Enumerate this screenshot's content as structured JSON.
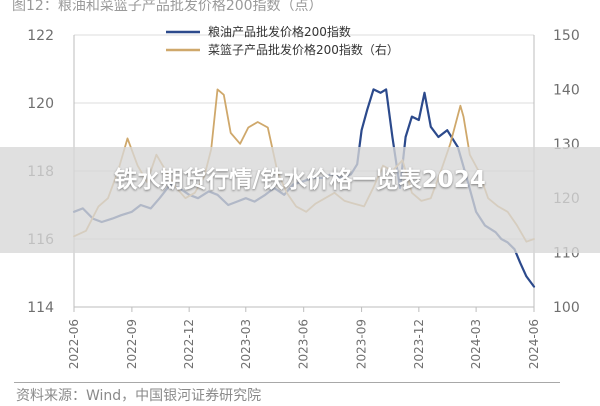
{
  "figure_title": "图12：粮油和菜篮子产品批发价格200指数（点）",
  "source_text": "资料来源：Wind，中国银河证券研究院",
  "banner": {
    "text": "铁水期货行情/铁水价格一览表2024"
  },
  "colors": {
    "series1": "#2c4a8c",
    "series2": "#cfa86b",
    "grid": "#dcdcdc",
    "axis": "#bdbdbd",
    "text": "#6f6f6f"
  },
  "chart_data": {
    "type": "line",
    "title": "",
    "xlabel": "",
    "ylabel": "",
    "ylim_left": [
      114,
      122
    ],
    "ylim_right": [
      100,
      150
    ],
    "left_ticks": [
      114,
      116,
      118,
      120,
      122
    ],
    "right_ticks": [
      100,
      110,
      120,
      130,
      140,
      150
    ],
    "x_range": [
      "2022-06",
      "2024-06"
    ],
    "x_ticks": [
      "2022-06",
      "2022-09",
      "2022-12",
      "2023-03",
      "2023-06",
      "2023-09",
      "2023-12",
      "2024-03",
      "2024-06"
    ],
    "legend_position": "top-center",
    "series": [
      {
        "name": "粮油产品批发价格200指数",
        "axis": "left",
        "x": [
          "2022-06-01",
          "2022-06-15",
          "2022-07-01",
          "2022-07-15",
          "2022-08-01",
          "2022-08-15",
          "2022-09-01",
          "2022-09-15",
          "2022-10-01",
          "2022-10-15",
          "2022-11-01",
          "2022-11-15",
          "2022-12-01",
          "2022-12-15",
          "2023-01-01",
          "2023-01-15",
          "2023-02-01",
          "2023-02-15",
          "2023-03-01",
          "2023-03-15",
          "2023-04-01",
          "2023-04-15",
          "2023-05-01",
          "2023-05-15",
          "2023-06-01",
          "2023-06-15",
          "2023-07-01",
          "2023-07-15",
          "2023-08-01",
          "2023-08-15",
          "2023-08-25",
          "2023-09-01",
          "2023-09-10",
          "2023-09-20",
          "2023-10-01",
          "2023-10-10",
          "2023-10-20",
          "2023-11-01",
          "2023-11-10",
          "2023-11-20",
          "2023-12-01",
          "2023-12-10",
          "2023-12-20",
          "2024-01-01",
          "2024-01-15",
          "2024-02-01",
          "2024-02-15",
          "2024-03-01",
          "2024-03-15",
          "2024-04-01",
          "2024-04-10",
          "2024-04-20",
          "2024-05-01",
          "2024-05-10",
          "2024-05-20",
          "2024-06-01"
        ],
        "values": [
          116.8,
          116.9,
          116.6,
          116.5,
          116.6,
          116.7,
          116.8,
          117.0,
          116.9,
          117.2,
          117.6,
          117.5,
          117.3,
          117.2,
          117.4,
          117.3,
          117.0,
          117.1,
          117.2,
          117.1,
          117.3,
          117.5,
          117.3,
          117.6,
          117.7,
          117.8,
          117.8,
          117.9,
          117.8,
          117.9,
          118.2,
          119.2,
          119.8,
          120.4,
          120.3,
          120.4,
          119.0,
          117.5,
          119.0,
          119.6,
          119.5,
          120.3,
          119.3,
          119.0,
          119.2,
          118.7,
          117.8,
          116.8,
          116.4,
          116.2,
          116.0,
          115.9,
          115.7,
          115.3,
          114.9,
          114.6
        ]
      },
      {
        "name": "菜篮子产品批发价格200指数（右）",
        "axis": "right",
        "x": [
          "2022-06-01",
          "2022-06-20",
          "2022-07-10",
          "2022-07-25",
          "2022-08-10",
          "2022-08-25",
          "2022-09-10",
          "2022-09-25",
          "2022-10-10",
          "2022-10-25",
          "2022-11-10",
          "2022-11-25",
          "2022-12-10",
          "2022-12-25",
          "2023-01-05",
          "2023-01-15",
          "2023-01-25",
          "2023-02-05",
          "2023-02-20",
          "2023-03-05",
          "2023-03-20",
          "2023-04-05",
          "2023-04-20",
          "2023-05-05",
          "2023-05-20",
          "2023-06-05",
          "2023-06-20",
          "2023-07-05",
          "2023-07-20",
          "2023-08-05",
          "2023-08-20",
          "2023-09-05",
          "2023-09-20",
          "2023-10-05",
          "2023-10-20",
          "2023-11-05",
          "2023-11-20",
          "2023-12-05",
          "2023-12-20",
          "2024-01-05",
          "2024-01-20",
          "2024-02-05",
          "2024-02-10",
          "2024-02-20",
          "2024-03-05",
          "2024-03-20",
          "2024-04-05",
          "2024-04-20",
          "2024-05-05",
          "2024-05-20",
          "2024-06-01"
        ],
        "values": [
          113.0,
          114.0,
          118.5,
          120.0,
          125.0,
          131.0,
          126.0,
          123.0,
          128.0,
          125.0,
          122.0,
          120.0,
          121.0,
          124.0,
          129.0,
          140.0,
          139.0,
          132.0,
          130.0,
          133.0,
          134.0,
          133.0,
          125.0,
          121.0,
          118.5,
          117.5,
          119.0,
          120.0,
          121.0,
          119.5,
          119.0,
          118.5,
          122.0,
          126.0,
          125.0,
          127.0,
          121.0,
          119.5,
          120.0,
          125.0,
          130.0,
          137.0,
          135.0,
          128.0,
          125.0,
          120.0,
          118.5,
          117.5,
          115.0,
          112.0,
          112.5
        ]
      }
    ]
  }
}
